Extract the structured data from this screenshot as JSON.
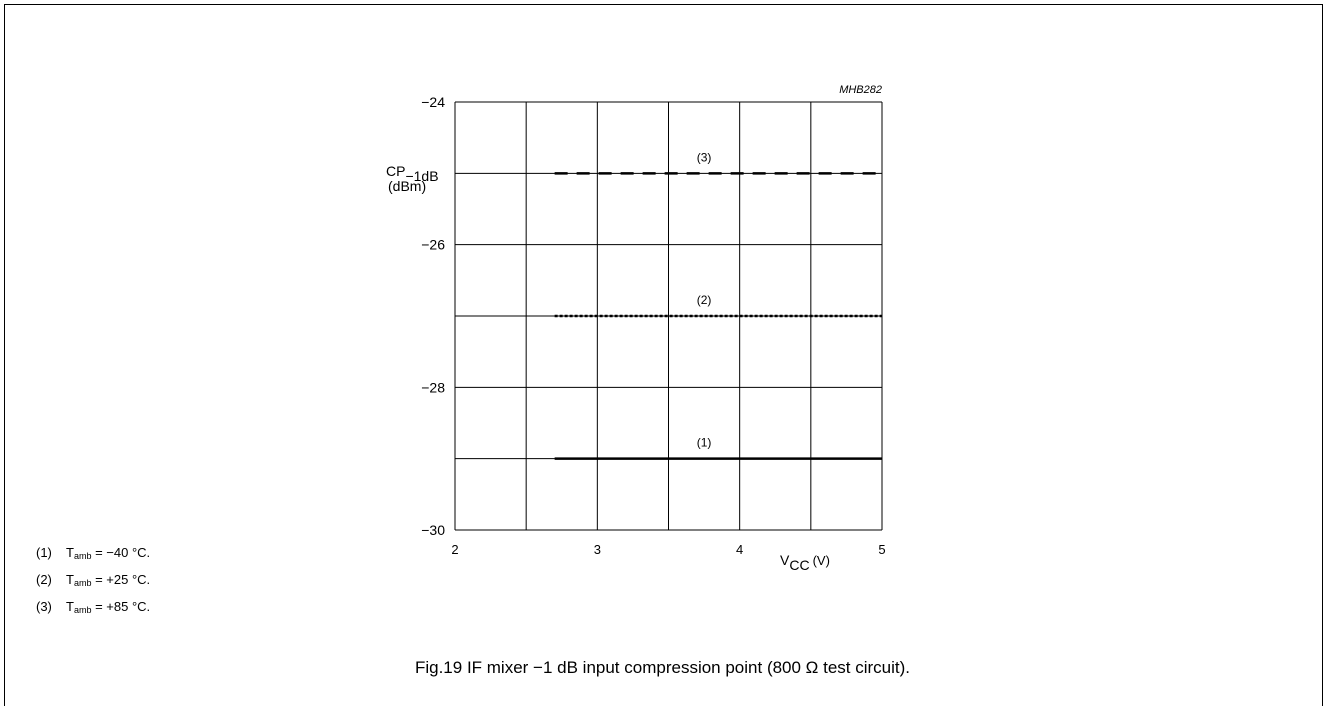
{
  "chart_data": {
    "type": "line",
    "code": "MHB282",
    "xlabel": "V",
    "xlabel_sub": "CC",
    "xlabel_unit": "(V)",
    "ylabel": "CP",
    "ylabel_sub": "−1dB",
    "ylabel_unit": "(dBm)",
    "xlim": [
      2,
      5
    ],
    "ylim": [
      -30,
      -24
    ],
    "x_ticks": [
      "2",
      "3",
      "4",
      "5"
    ],
    "y_ticks": [
      "−30",
      "−28",
      "−26",
      "−24"
    ],
    "grid": true,
    "series": [
      {
        "name": "(1)",
        "x": [
          2.7,
          5
        ],
        "y": [
          -29,
          -29
        ],
        "style": "solid"
      },
      {
        "name": "(2)",
        "x": [
          2.7,
          5
        ],
        "y": [
          -27,
          -27
        ],
        "style": "dotted"
      },
      {
        "name": "(3)",
        "x": [
          2.7,
          5
        ],
        "y": [
          -25,
          -25
        ],
        "style": "dashed"
      }
    ]
  },
  "legend": [
    {
      "num": "(1)",
      "pre": "T",
      "sub": "amb",
      "post": " = −40 °C."
    },
    {
      "num": "(2)",
      "pre": "T",
      "sub": "amb",
      "post": " = +25 °C."
    },
    {
      "num": "(3)",
      "pre": "T",
      "sub": "amb",
      "post": " = +85 °C."
    }
  ],
  "caption": "Fig.19  IF mixer −1 dB input compression point (800 Ω test circuit)."
}
